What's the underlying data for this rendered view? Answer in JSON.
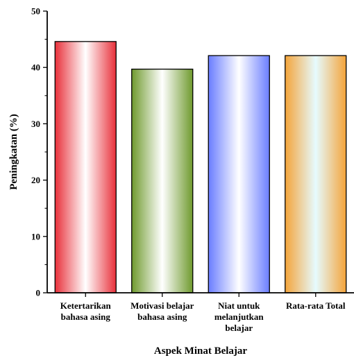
{
  "chart_data": {
    "type": "bar",
    "categories": [
      [
        "Ketertarikan",
        "bahasa asing"
      ],
      [
        "Motivasi belajar",
        "bahasa asing"
      ],
      [
        "Niat untuk",
        "melanjutkan",
        "belajar"
      ],
      [
        "Rata-rata Total"
      ]
    ],
    "values": [
      44.6,
      39.7,
      42.1,
      42.1
    ],
    "colors": [
      "#e8303a",
      "#6f9a2e",
      "#6a7dff",
      "#f4a43a"
    ],
    "highlight_colors": [
      "#ffffff",
      "#ffffff",
      "#ffffff",
      "#e6fbff"
    ],
    "xlabel": "Aspek Minat Belajar",
    "ylabel": "Peningkatan (%)",
    "ylim": [
      0,
      50
    ],
    "yticks": [
      0,
      10,
      20,
      30,
      40,
      50
    ],
    "grid": false
  }
}
